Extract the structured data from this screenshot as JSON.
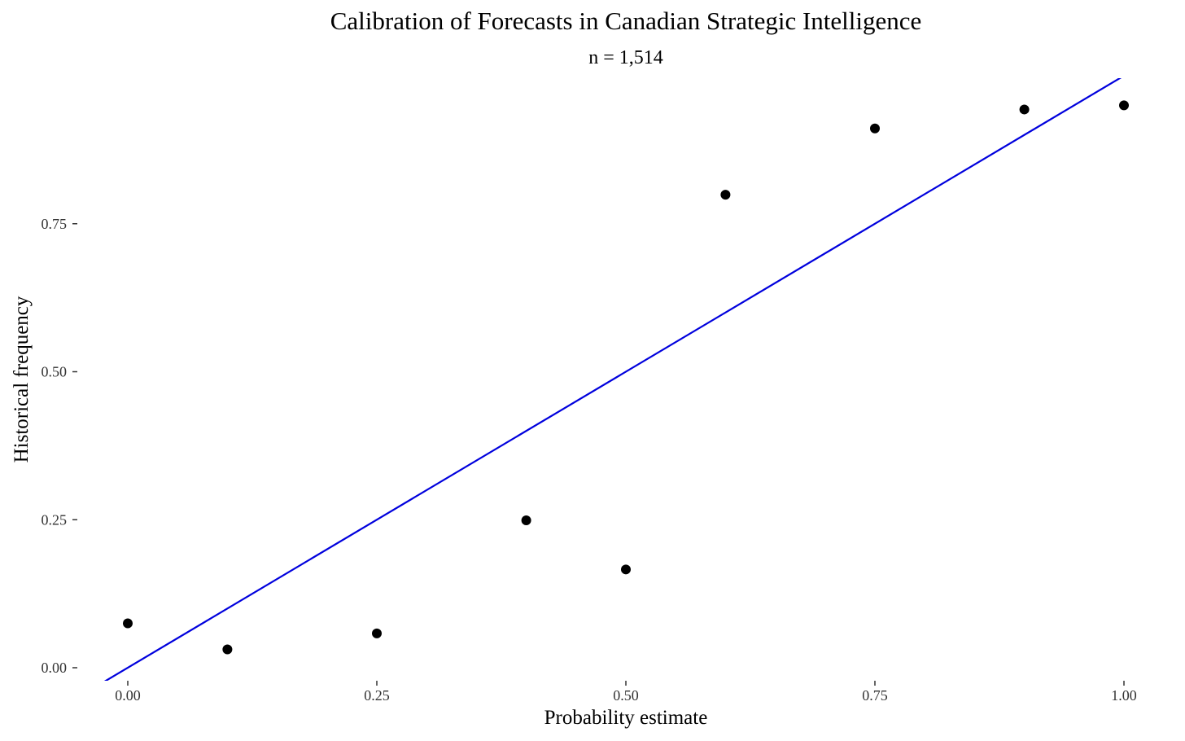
{
  "chart_data": {
    "type": "scatter",
    "title": "Calibration of Forecasts in Canadian Strategic Intelligence",
    "subtitle": "n = 1,514",
    "xlabel": "Probability estimate",
    "ylabel": "Historical frequency",
    "xlim": [
      -0.01,
      1.01
    ],
    "ylim": [
      -0.01,
      0.99
    ],
    "x_ticks": [
      0,
      0.25,
      0.5,
      0.75,
      1.0
    ],
    "x_tick_labels": [
      "0.00",
      "0.25",
      "0.50",
      "0.75",
      "1.00"
    ],
    "y_ticks": [
      0,
      0.25,
      0.5,
      0.75
    ],
    "y_tick_labels": [
      "0.00",
      "0.25",
      "0.50",
      "0.75"
    ],
    "grid": false,
    "points": [
      {
        "x": 0.0,
        "y": 0.075
      },
      {
        "x": 0.1,
        "y": 0.031
      },
      {
        "x": 0.25,
        "y": 0.058
      },
      {
        "x": 0.4,
        "y": 0.249
      },
      {
        "x": 0.5,
        "y": 0.166
      },
      {
        "x": 0.6,
        "y": 0.799
      },
      {
        "x": 0.75,
        "y": 0.911
      },
      {
        "x": 0.9,
        "y": 0.943
      },
      {
        "x": 1.0,
        "y": 0.95
      }
    ],
    "reference_line": {
      "slope": 1,
      "intercept": 0,
      "color": "#0000dd"
    },
    "point_color": "#000000"
  }
}
